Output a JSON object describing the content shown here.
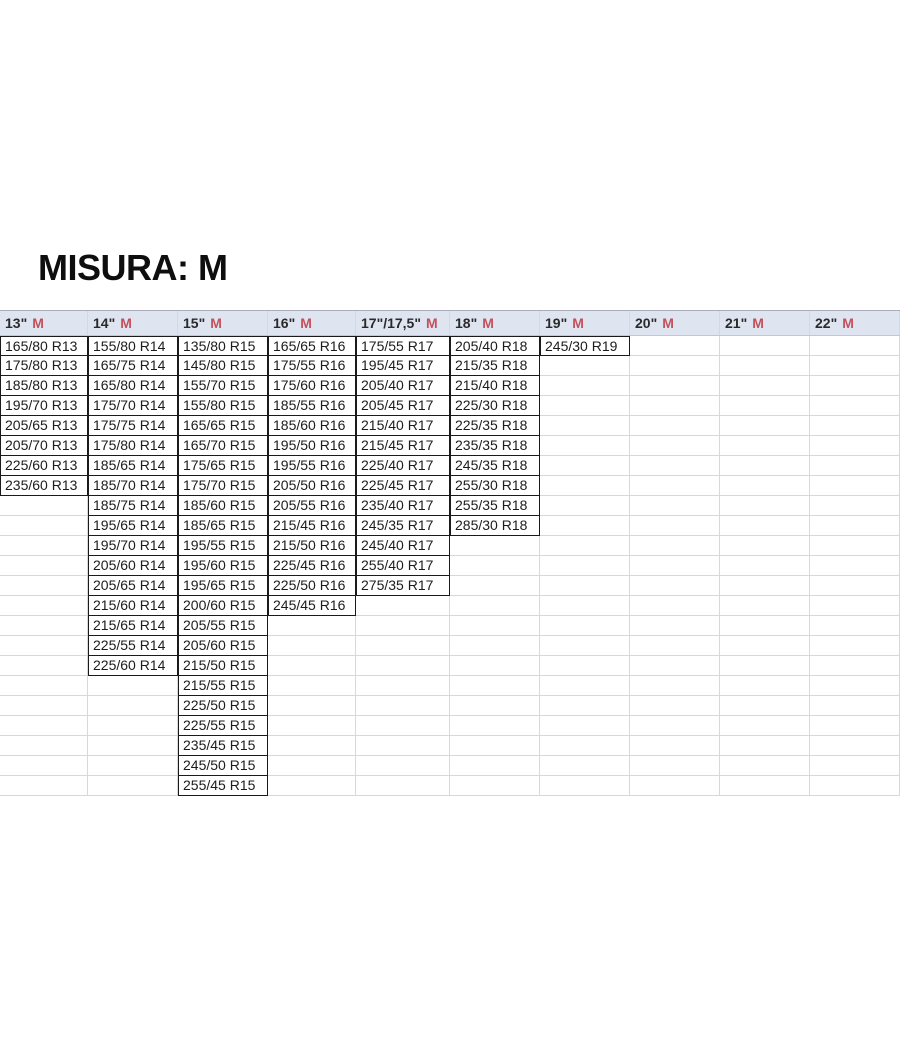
{
  "title": "MISURA: M",
  "colors": {
    "header_background": "#dfe4f1",
    "marker_red": "#c4515c",
    "cell_border": "#1a1a1a",
    "gridline": "#d8d8d8",
    "text": "#1c1c1c"
  },
  "chart_data": {
    "type": "table",
    "title": "MISURA: M",
    "visible_rows": 23,
    "grid_on": true,
    "headers": [
      "13\" M",
      "14\" M",
      "15\" M",
      "16\" M",
      "17\"/17,5\" M",
      "18\" M",
      "19\" M",
      "20\" M",
      "21\" M",
      "22\" M"
    ],
    "columns": [
      {
        "header_size": "13\"",
        "header_marker": "M",
        "values": [
          "165/80 R13",
          "175/80 R13",
          "185/80 R13",
          "195/70 R13",
          "205/65 R13",
          "205/70 R13",
          "225/60 R13",
          "235/60 R13"
        ]
      },
      {
        "header_size": "14\"",
        "header_marker": "M",
        "values": [
          "155/80 R14",
          "165/75 R14",
          "165/80 R14",
          "175/70 R14",
          "175/75 R14",
          "175/80 R14",
          "185/65 R14",
          "185/70 R14",
          "185/75 R14",
          "195/65 R14",
          "195/70 R14",
          "205/60 R14",
          "205/65 R14",
          "215/60 R14",
          "215/65 R14",
          "225/55 R14",
          "225/60 R14"
        ]
      },
      {
        "header_size": "15\"",
        "header_marker": "M",
        "values": [
          "135/80 R15",
          "145/80 R15",
          "155/70 R15",
          "155/80 R15",
          "165/65 R15",
          "165/70 R15",
          "175/65 R15",
          "175/70 R15",
          "185/60 R15",
          "185/65 R15",
          "195/55 R15",
          "195/60 R15",
          "195/65 R15",
          "200/60 R15",
          "205/55 R15",
          "205/60 R15",
          "215/50 R15",
          "215/55 R15",
          "225/50 R15",
          "225/55 R15",
          "235/45 R15",
          "245/50 R15",
          "255/45 R15"
        ]
      },
      {
        "header_size": "16\"",
        "header_marker": "M",
        "values": [
          "165/65 R16",
          "175/55 R16",
          "175/60 R16",
          "185/55 R16",
          "185/60 R16",
          "195/50 R16",
          "195/55 R16",
          "205/50 R16",
          "205/55 R16",
          "215/45 R16",
          "215/50 R16",
          "225/45 R16",
          "225/50 R16",
          "245/45 R16"
        ]
      },
      {
        "header_size": "17\"/17,5\"",
        "header_marker": "M",
        "values": [
          "175/55 R17",
          "195/45 R17",
          "205/40 R17",
          "205/45 R17",
          "215/40 R17",
          "215/45 R17",
          "225/40 R17",
          "225/45 R17",
          "235/40 R17",
          "245/35 R17",
          "245/40 R17",
          "255/40 R17",
          "275/35 R17"
        ]
      },
      {
        "header_size": "18\"",
        "header_marker": "M",
        "values": [
          "205/40 R18",
          "215/35 R18",
          "215/40 R18",
          "225/30 R18",
          "225/35 R18",
          "235/35 R18",
          "245/35 R18",
          "255/30 R18",
          "255/35 R18",
          "285/30 R18"
        ]
      },
      {
        "header_size": "19\"",
        "header_marker": "M",
        "values": [
          "245/30 R19"
        ]
      },
      {
        "header_size": "20\"",
        "header_marker": "M",
        "values": []
      },
      {
        "header_size": "21\"",
        "header_marker": "M",
        "values": []
      },
      {
        "header_size": "22\"",
        "header_marker": "M",
        "values": []
      }
    ]
  }
}
